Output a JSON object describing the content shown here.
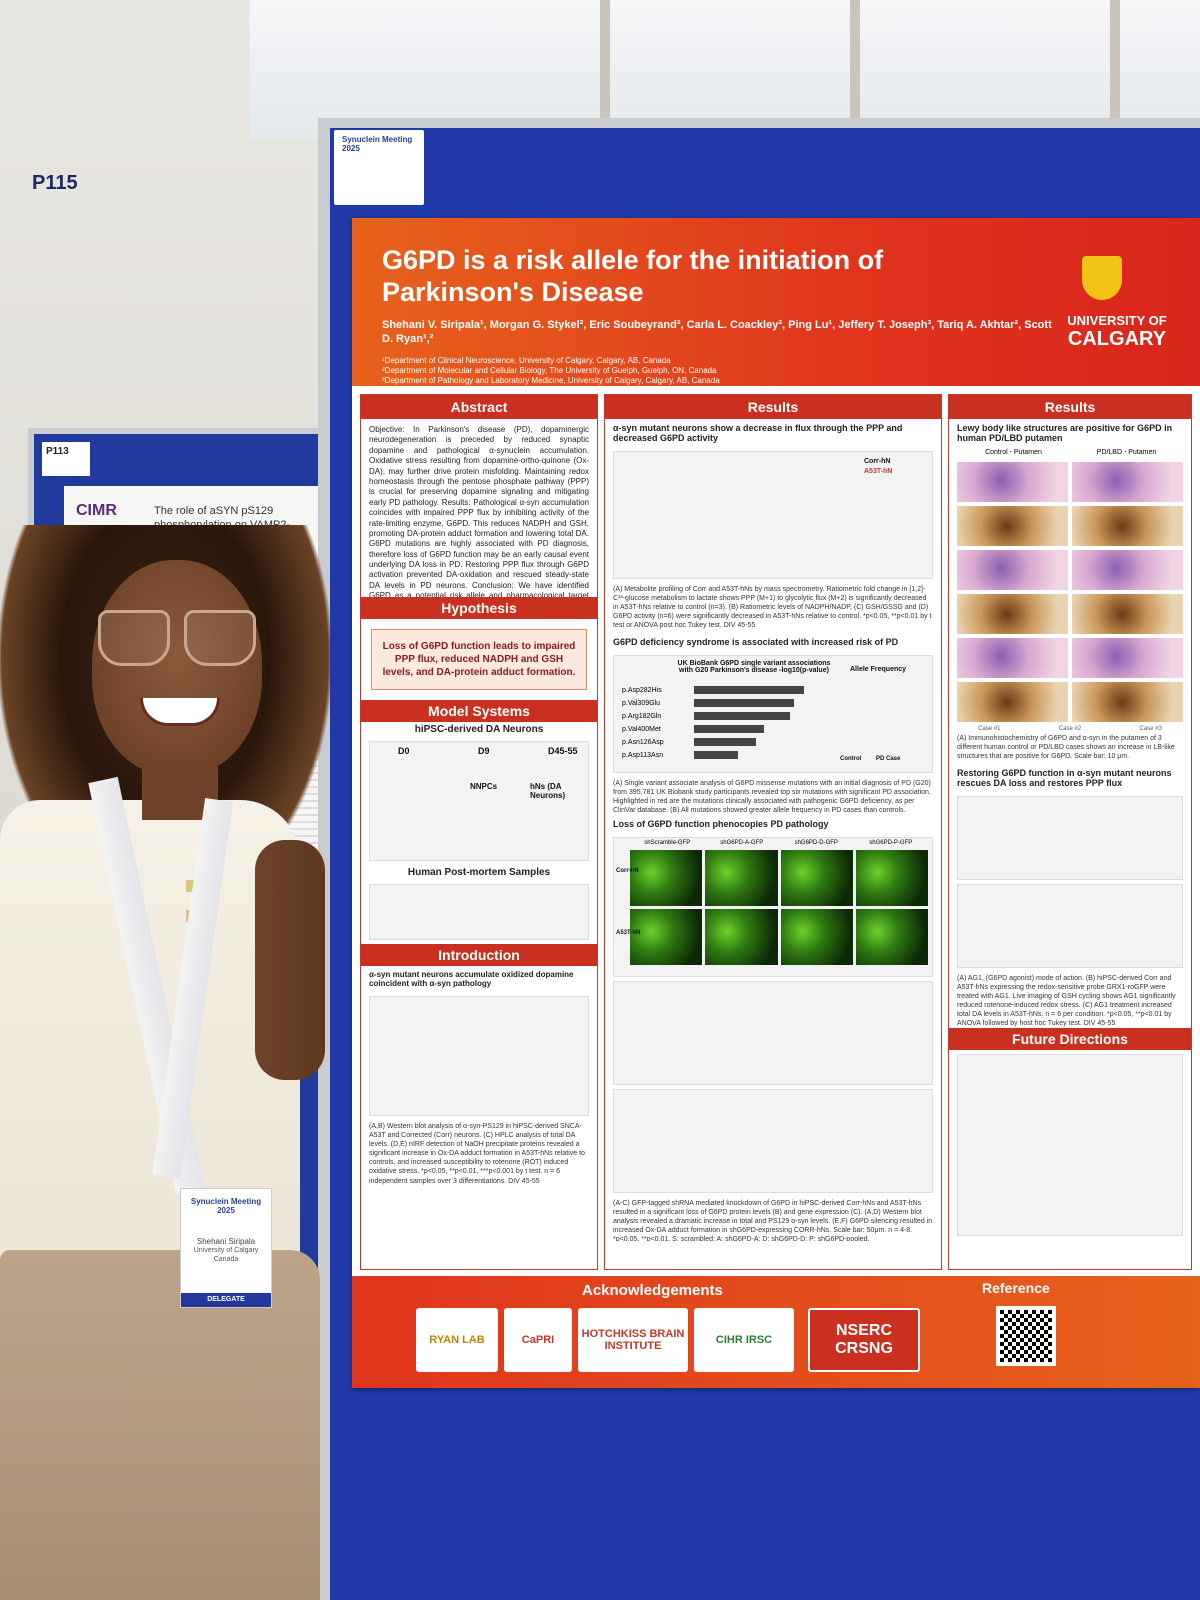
{
  "back_poster": {
    "tag": "P113",
    "logo": "CIMR",
    "title": "The role of aSYN pS129 phosphorylation on VAMP2-mediated aSYN phase sep..."
  },
  "board": {
    "tag_logo": "Synuclein Meeting 2025",
    "tag_code": "P115"
  },
  "poster": {
    "title": "G6PD is a risk allele for the initiation of Parkinson's Disease",
    "authors": "Shehani V. Siripala¹, Morgan G. Stykel², Eric Soubeyrand², Carla L. Coackley², Ping Lu¹, Jeffery T. Joseph³, Tariq A. Akhtar², Scott D. Ryan¹,²",
    "affiliations": [
      "¹Department of Clinical Neuroscience, University of Calgary, Calgary, AB, Canada",
      "²Department of Molecular and Cellular Biology, The University of Guelph, Guelph, ON, Canada",
      "³Department of Pathology and Laboratory Medicine, University of Calgary, Calgary, AB, Canada"
    ],
    "university": {
      "line1": "UNIVERSITY OF",
      "line2": "CALGARY"
    },
    "abstract": {
      "heading": "Abstract",
      "text": "Objective: In Parkinson's disease (PD), dopaminergic neurodegeneration is preceded by reduced synaptic dopamine and pathological α-synuclein accumulation. Oxidative stress resulting from dopamine-ortho-quinone (Ox-DA), may further drive protein misfolding. Maintaining redox homeostasis through the pentose phosphate pathway (PPP) is crucial for preserving dopamine signaling and mitigating early PD pathology. Results: Pathological α-syn accumulation coincides with impaired PPP flux by inhibiting activity of the rate-limiting enzyme, G6PD. This reduces NADPH and GSH, promoting DA-protein adduct formation and lowering total DA. G6PD mutations are highly associated with PD diagnosis, therefore loss of G6PD function may be an early causal event underlying DA loss in PD. Restoring PPP flux through G6PD activation prevented DA-oxidation and rescued steady-state DA levels in PD neurons. Conclusion: We have identified G6PD as a potential risk allele and pharmacological target against PD."
    },
    "hypothesis": {
      "heading": "Hypothesis",
      "text": "Loss of G6PD function leads to impaired PPP flux, reduced NADPH and GSH levels, and DA-protein adduct formation."
    },
    "model_systems": {
      "heading": "Model Systems",
      "sub1": "hiPSC-derived DA Neurons",
      "stages": [
        "D0",
        "D9",
        "D45-55"
      ],
      "labels": [
        "NNPCs",
        "hNs (DA Neurons)"
      ],
      "sub2": "Human Post-mortem Samples"
    },
    "introduction": {
      "heading": "Introduction",
      "subtitle": "α-syn mutant neurons accumulate oxidized dopamine coincident with α-syn pathology",
      "caption": "(A,B) Western blot analysis of α-syn-PS129 in hiPSC-derived SNCA-A53T and Corrected (Corr) neurons. (C) HPLC analysis of total DA levels. (D,E) nIRF detection of NaOH precipitate proteins revealed a significant increase in Ox-DA adduct formation in A53T-hNs relative to controls, and increased susceptibility to rotenone (ROT) induced oxidative stress. *p<0.05, **p<0.01, ***p<0.001 by t test. n = 6 independent samples over 3 differentiations. DIV 45-55"
    },
    "results1": {
      "heading": "Results",
      "sub1": "α-syn mutant neurons show a decrease in flux through the PPP and decreased G6PD activity",
      "legend": [
        "Corr-hN",
        "A53T-hN"
      ],
      "caption1": "(A) Metabolite profiling of Corr and A53T-hNs by mass spectrometry. Ratiometric fold change in [1,2]-C¹³-glucose metabolism to lactate shows PPP (M+1) to glycolytic flux (M+2) is significantly decreased in A53T-hNs relative to control (n=3). (B) Ratiometric levels of NADPH/NADP, (C) GSH/GSSG and (D) G6PD activity (n=6) were significantly decreased in A53T-hNs relative to control. *p<0.05, **p<0.01 by t test or ANOVA post hoc Tukey test. DIV 45-55",
      "sub2": "G6PD deficiency syndrome is associated with increased risk of PD",
      "ukb_title": "UK BioBank G6PD single variant associations with G20 Parkinson's disease -log10(p-value)",
      "variants": [
        "p.Asp282His",
        "p.Val309Glu",
        "p.Arg182Gln",
        "p.Val400Met",
        "p.Asn126Asp",
        "p.Asp113Asn"
      ],
      "allele_title": "Allele Frequency",
      "allele_axis": [
        "Control",
        "PD Case"
      ],
      "caption2": "(A) Single variant associate analysis of G6PD missense mutations with an initial diagnosis of PD (G20) from 395,781 UK Biobank study participants revealed top six mutations with significant PD association. Highlighted in red are the mutations clinically associated with pathogenic G6PD deficiency, as per ClinVar database. (B) All mutations showed greater allele frequency in PD cases than controls.",
      "sub3": "Loss of G6PD function phenocopies PD pathology",
      "shrna_cols": [
        "shScramble-GFP",
        "shG6PD-A-GFP",
        "shG6PD-D-GFP",
        "shG6PD-P-GFP"
      ],
      "row_labels": [
        "Corr-hN",
        "A53T-hN"
      ],
      "caption3": "(A-C) GFP-tagged shRNA mediated knockdown of G6PD in hiPSC-derived Corr-hNs and A53T-hNs resulted in a significant loss of G6PD protein levels (B) and gene expression (C). (A,D) Western blot analysis revealed a dramatic increase in total and PS129 α-syn levels. (E,F) G6PD silencing resulted in increased Ox-DA adduct formation in shG6PD-expressing CORR-hNs. Scale bar: 50μm. n = 4-8. *p<0.05, **p<0.01. S: scrambled; A: shG6PD-A; D: shG6PD-D; P: shG6PD-pooled."
    },
    "results2": {
      "heading": "Results",
      "sub1": "Lewy body like structures are positive for G6PD in human PD/LBD putamen",
      "col_labels": [
        "Control - Putamen",
        "PD/LBD - Putamen"
      ],
      "case_labels": [
        "Case #1",
        "Case #2",
        "Case #3"
      ],
      "caption1": "(A) Immunohistochemistry of G6PD and α-syn in the putamen of 3 different human control or PD/LBD cases shows an increase in LB-like structures that are positive for G6PD. Scale bar: 10 μm.",
      "sub2": "Restoring G6PD function in α-syn mutant neurons rescues DA loss and restores PPP flux",
      "caption2": "(A) AG1, (G6PD agonist) mode of action. (B) hiPSC-derived Corr and A53T-hNs expressing the redox-sensitive probe GRX1-roGFP were treated with AG1. Live imaging of GSH cycling shows AG1 significantly reduced rotenone-induced redox stress. (C) AG1 treatment increased total DA levels in A53T-hNs. n = 6 per condition. *p<0.05, **p<0.01 by ANOVA followed by host hoc Tukey test. DIV 45-55",
      "future_heading": "Future Directions"
    },
    "footer": {
      "ack": "Acknowledgements",
      "ref": "Reference",
      "sponsors": [
        "RYAN LAB",
        "CaPRI",
        "HOTCHKISS BRAIN INSTITUTE",
        "CIHR IRSC",
        "NSERC CRSNG"
      ]
    }
  },
  "person": {
    "badge_event": "Synuclein Meeting 2025",
    "badge_name": "Shehani Siripala",
    "badge_affil": "University of Calgary Canada",
    "badge_role": "DELEGATE"
  }
}
